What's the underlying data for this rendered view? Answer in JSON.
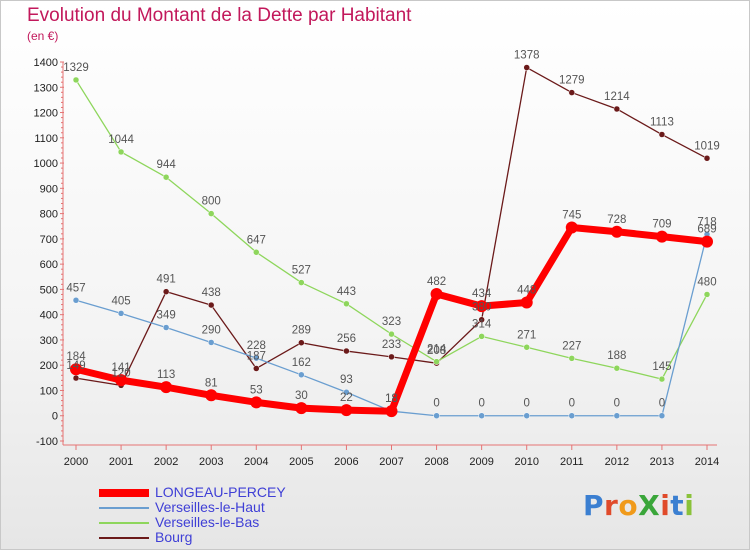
{
  "title": "Evolution du Montant de la Dette par Habitant",
  "unit_label": "(en €)",
  "logo_text": "ProXiti",
  "chart_data": {
    "type": "line",
    "title": "Evolution du Montant de la Dette par Habitant",
    "ylabel": "(en €)",
    "xlabel": "",
    "x": [
      "2000",
      "2001",
      "2002",
      "2003",
      "2004",
      "2005",
      "2006",
      "2007",
      "2008",
      "2009",
      "2010",
      "2011",
      "2012",
      "2013",
      "2014"
    ],
    "ylim": [
      -100,
      1400
    ],
    "yticks": [
      -100,
      0,
      100,
      200,
      300,
      400,
      500,
      600,
      700,
      800,
      900,
      1000,
      1100,
      1200,
      1300,
      1400
    ],
    "grid": false,
    "legend_position": "bottom-left",
    "series": [
      {
        "name": "Bourg",
        "color": "#6b1a1a",
        "values": [
          149,
          120,
          491,
          438,
          187,
          289,
          256,
          233,
          208,
          380,
          1378,
          1279,
          1214,
          1113,
          1019
        ],
        "labels": [
          "149",
          "120",
          "491",
          "438",
          "187",
          "289",
          "256",
          "233",
          "208",
          "380",
          "1378",
          "1279",
          "1214",
          "1113",
          "1019"
        ]
      },
      {
        "name": "Verseilles-le-Bas",
        "color": "#8ed65c",
        "values": [
          1329,
          1044,
          944,
          800,
          647,
          527,
          443,
          323,
          214,
          314,
          271,
          227,
          188,
          145,
          480
        ],
        "labels": [
          "1329",
          "1044",
          "944",
          "800",
          "647",
          "527",
          "443",
          "323",
          "214",
          "314",
          "271",
          "227",
          "188",
          "145",
          "480"
        ]
      },
      {
        "name": "Verseilles-le-Haut",
        "color": "#6a9ed0",
        "values": [
          457,
          405,
          349,
          290,
          228,
          162,
          93,
          18,
          0,
          0,
          0,
          0,
          0,
          0,
          718
        ],
        "labels": [
          "457",
          "405",
          "349",
          "290",
          "228",
          "162",
          "93",
          "18",
          "0",
          "0",
          "0",
          "0",
          "0",
          "0",
          "718"
        ]
      },
      {
        "name": "LONGEAU-PERCEY",
        "color": "#ff0000",
        "values": [
          184,
          141,
          113,
          81,
          53,
          30,
          22,
          18,
          482,
          434,
          448,
          745,
          728,
          709,
          689
        ],
        "labels": [
          "184",
          "141",
          "113",
          "81",
          "53",
          "30",
          "22",
          "18",
          "482",
          "434",
          "448",
          "745",
          "728",
          "709",
          "689"
        ]
      }
    ],
    "legend": [
      "LONGEAU-PERCEY",
      "Verseilles-le-Haut",
      "Verseilles-le-Bas",
      "Bourg"
    ]
  },
  "legend_colors": {
    "LONGEAU-PERCEY": "#ff0000",
    "Verseilles-le-Haut": "#6a9ed0",
    "Verseilles-le-Bas": "#8ed65c",
    "Bourg": "#6b1a1a"
  },
  "legend_text_color": "#3f3fd6"
}
